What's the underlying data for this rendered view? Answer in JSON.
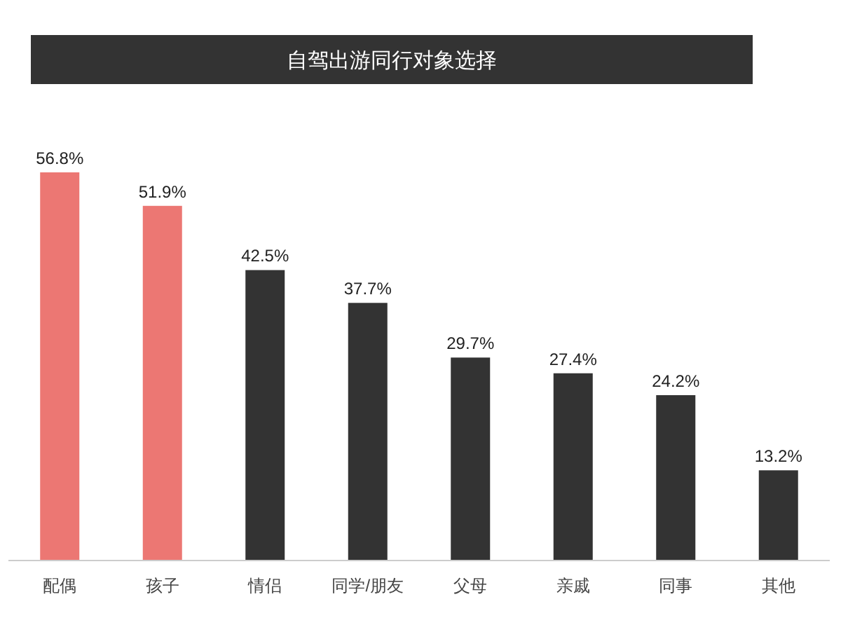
{
  "chart_data": {
    "type": "bar",
    "title": "自驾出游同行对象选择",
    "categories": [
      "配偶",
      "孩子",
      "情侣",
      "同学/朋友",
      "父母",
      "亲戚",
      "同事",
      "其他"
    ],
    "values": [
      56.8,
      51.9,
      42.5,
      37.7,
      29.7,
      27.4,
      24.2,
      13.2
    ],
    "colors": [
      "#ec7773",
      "#ec7773",
      "#333333",
      "#333333",
      "#333333",
      "#333333",
      "#333333",
      "#333333"
    ],
    "value_labels": [
      "56.8%",
      "51.9%",
      "42.5%",
      "37.7%",
      "29.7%",
      "27.4%",
      "24.2%",
      "13.2%"
    ]
  }
}
